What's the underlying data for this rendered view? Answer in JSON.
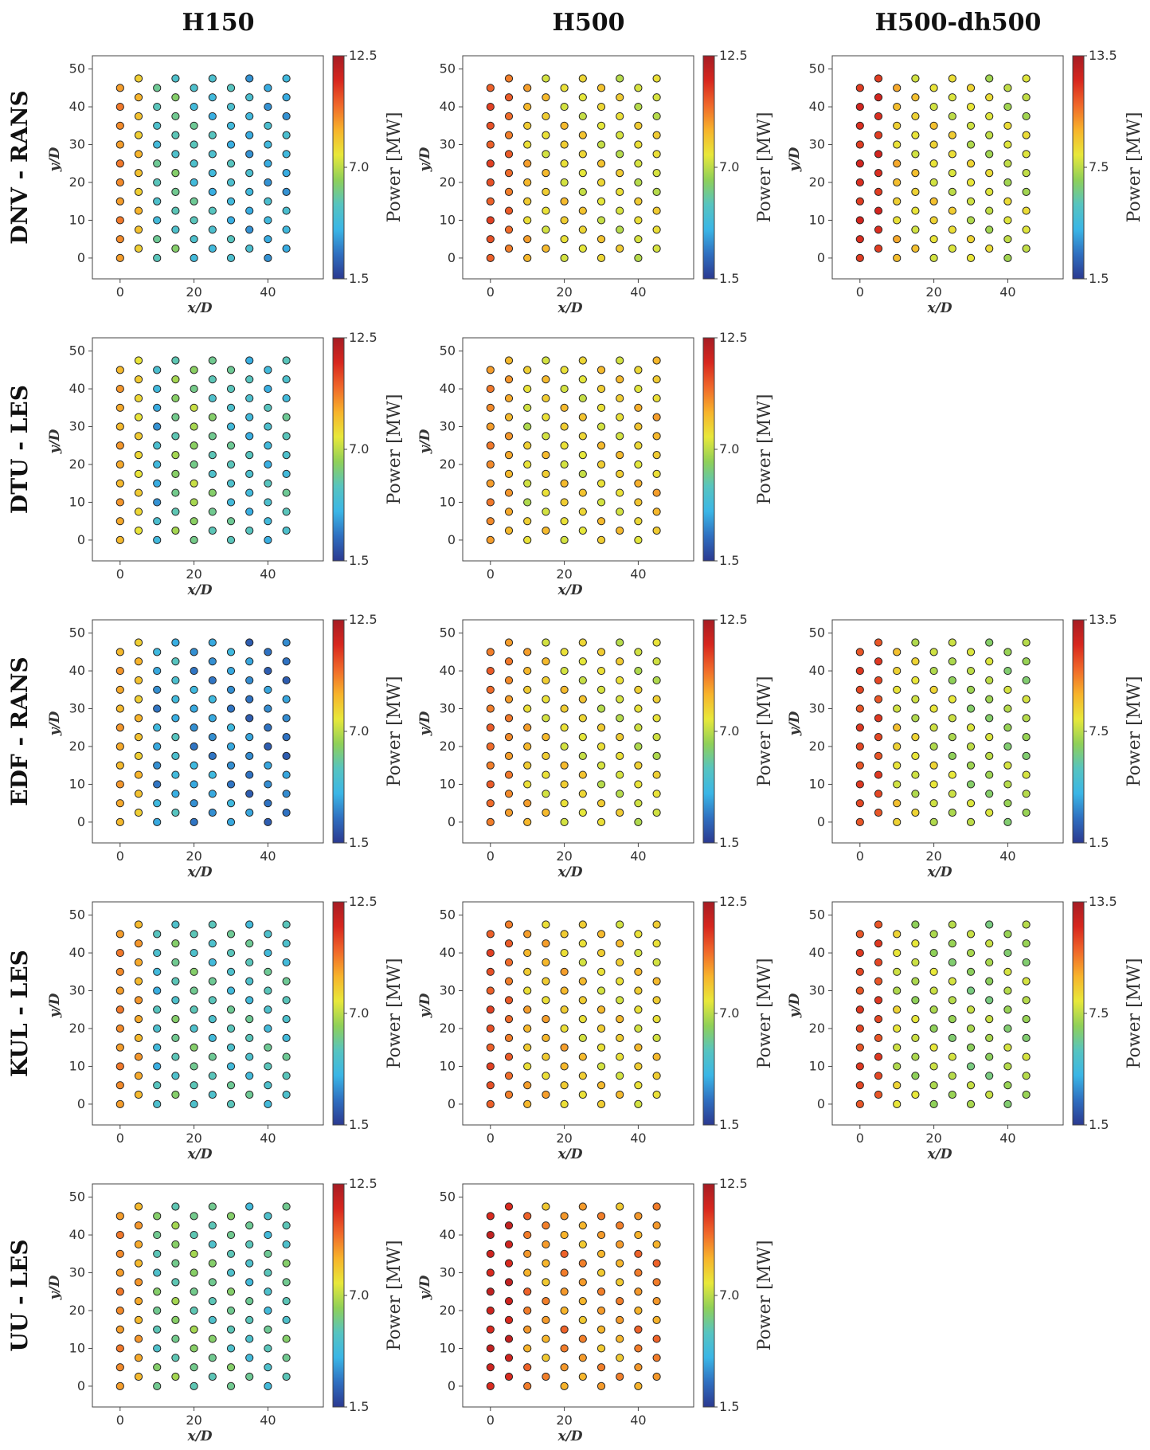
{
  "column_titles": [
    "H150",
    "H500",
    "H500-dh500"
  ],
  "row_titles": [
    "DNV - RANS",
    "DTU - LES",
    "EDF - RANS",
    "KUL - LES",
    "UU - LES"
  ],
  "axis_labels": {
    "x": "x/D",
    "y": "y/D"
  },
  "colorbar_label": "Power [MW]",
  "colormap": [
    "#2b3990",
    "#2f6fc0",
    "#3ab6e6",
    "#57c4c0",
    "#8fd058",
    "#e8e83a",
    "#f7b32b",
    "#f0682a",
    "#d7261e",
    "#a51c24"
  ],
  "chart_data": {
    "type": "scatter",
    "description_of_layout": "5 x 3 grid of turbine-layout scatter panels colored by power",
    "x_ticks": [
      0,
      20,
      40
    ],
    "y_ticks": [
      0,
      10,
      20,
      30,
      40,
      50
    ],
    "xlim": [
      -7.5,
      55
    ],
    "ylim": [
      -5.5,
      53.5
    ],
    "turbine_columns_x": [
      0,
      5,
      10,
      15,
      20,
      25,
      30,
      35,
      40,
      45
    ],
    "turbine_rows_y_even_columns": [
      0,
      5,
      10,
      15,
      20,
      25,
      30,
      35,
      40,
      45
    ],
    "turbine_rows_y_odd_columns": [
      2.5,
      7.5,
      12.5,
      17.5,
      22.5,
      27.5,
      32.5,
      37.5,
      42.5,
      47.5
    ],
    "panels": [
      {
        "row": "DNV - RANS",
        "column": "H150",
        "clim": [
          1.5,
          12.5
        ],
        "cticks": [
          "1.5",
          "7.0",
          "12.5"
        ],
        "column_power_MW": [
          9.5,
          8.5,
          5.0,
          5.5,
          5.0,
          4.5,
          4.5,
          4.0,
          4.0,
          4.0
        ]
      },
      {
        "row": "DNV - RANS",
        "column": "H500",
        "clim": [
          1.5,
          12.5
        ],
        "cticks": [
          "1.5",
          "7.0",
          "12.5"
        ],
        "column_power_MW": [
          10.5,
          10.0,
          8.5,
          8.0,
          8.0,
          7.8,
          7.8,
          7.6,
          7.6,
          7.6
        ]
      },
      {
        "row": "DNV - RANS",
        "column": "H500-dh500",
        "clim": [
          1.5,
          13.5
        ],
        "cticks": [
          "1.5",
          "7.5",
          "13.5"
        ],
        "column_power_MW": [
          12.0,
          12.0,
          9.0,
          8.5,
          8.5,
          8.2,
          8.0,
          7.8,
          7.8,
          7.8
        ]
      },
      {
        "row": "DTU - LES",
        "column": "H150",
        "clim": [
          1.5,
          12.5
        ],
        "cticks": [
          "1.5",
          "7.0",
          "12.5"
        ],
        "column_power_MW": [
          9.0,
          8.0,
          4.0,
          6.0,
          6.5,
          5.5,
          5.0,
          4.5,
          4.5,
          5.0
        ]
      },
      {
        "row": "DTU - LES",
        "column": "H500",
        "clim": [
          1.5,
          12.5
        ],
        "cticks": [
          "1.5",
          "7.0",
          "12.5"
        ],
        "column_power_MW": [
          9.5,
          9.0,
          7.5,
          8.0,
          8.0,
          7.8,
          8.0,
          8.0,
          8.2,
          8.5
        ]
      },
      {
        "row": "EDF - RANS",
        "column": "H150",
        "clim": [
          1.5,
          12.5
        ],
        "cticks": [
          "1.5",
          "7.0",
          "12.5"
        ],
        "column_power_MW": [
          9.0,
          8.5,
          3.5,
          4.5,
          3.5,
          3.5,
          3.5,
          3.0,
          3.0,
          3.0
        ]
      },
      {
        "row": "EDF - RANS",
        "column": "H500",
        "clim": [
          1.5,
          12.5
        ],
        "cticks": [
          "1.5",
          "7.0",
          "12.5"
        ],
        "column_power_MW": [
          10.0,
          9.5,
          8.5,
          8.0,
          8.0,
          7.8,
          7.6,
          7.6,
          7.5,
          7.5
        ]
      },
      {
        "row": "EDF - RANS",
        "column": "H500-dh500",
        "clim": [
          1.5,
          13.5
        ],
        "cticks": [
          "1.5",
          "7.5",
          "13.5"
        ],
        "column_power_MW": [
          11.5,
          11.5,
          8.5,
          8.0,
          8.0,
          7.5,
          7.3,
          7.3,
          7.2,
          7.2
        ]
      },
      {
        "row": "KUL - LES",
        "column": "H150",
        "clim": [
          1.5,
          12.5
        ],
        "cticks": [
          "1.5",
          "7.0",
          "12.5"
        ],
        "column_power_MW": [
          9.5,
          9.0,
          4.5,
          5.5,
          5.5,
          5.0,
          5.0,
          5.0,
          5.0,
          5.0
        ]
      },
      {
        "row": "KUL - LES",
        "column": "H500",
        "clim": [
          1.5,
          12.5
        ],
        "cticks": [
          "1.5",
          "7.0",
          "12.5"
        ],
        "column_power_MW": [
          10.5,
          10.0,
          8.5,
          8.5,
          8.5,
          8.0,
          8.0,
          8.0,
          8.0,
          8.0
        ]
      },
      {
        "row": "KUL - LES",
        "column": "H500-dh500",
        "clim": [
          1.5,
          13.5
        ],
        "cticks": [
          "1.5",
          "7.5",
          "13.5"
        ],
        "column_power_MW": [
          11.5,
          11.5,
          8.0,
          7.5,
          7.5,
          7.2,
          7.0,
          7.0,
          7.2,
          7.2
        ]
      },
      {
        "row": "UU - LES",
        "column": "H150",
        "clim": [
          1.5,
          12.5
        ],
        "cticks": [
          "1.5",
          "7.0",
          "12.5"
        ],
        "column_power_MW": [
          9.5,
          9.0,
          5.5,
          6.0,
          6.0,
          5.5,
          5.5,
          5.0,
          5.0,
          5.5
        ]
      },
      {
        "row": "UU - LES",
        "column": "H500",
        "clim": [
          1.5,
          12.5
        ],
        "cticks": [
          "1.5",
          "7.0",
          "12.5"
        ],
        "column_power_MW": [
          11.5,
          11.5,
          9.5,
          9.0,
          9.5,
          9.0,
          9.0,
          9.0,
          9.5,
          9.5
        ]
      }
    ]
  }
}
